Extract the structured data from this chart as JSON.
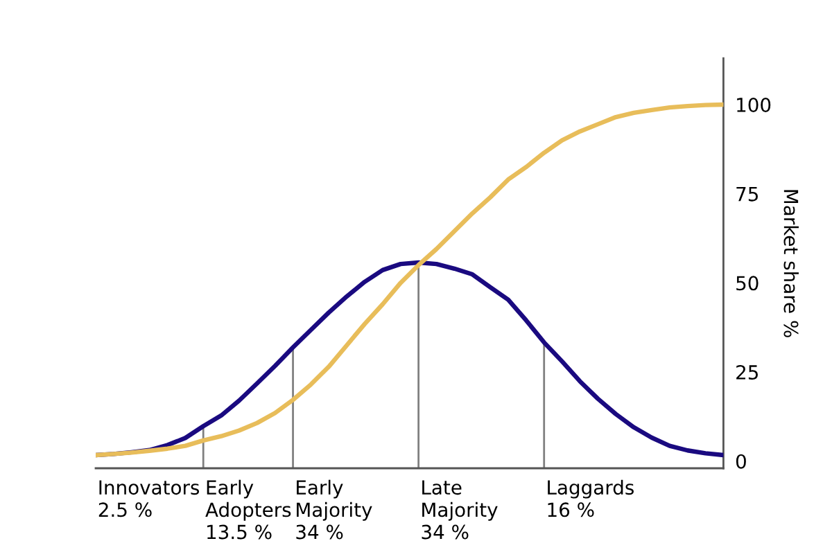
{
  "chart_data": {
    "type": "line",
    "ylabel": "Market share %",
    "categories": [
      null,
      null,
      null,
      null,
      null,
      null,
      null,
      null,
      null,
      null,
      null,
      null,
      null,
      null,
      null,
      null,
      null,
      null,
      null,
      null,
      null,
      null,
      null,
      null,
      null,
      null,
      null,
      null,
      null,
      null,
      null,
      null,
      null,
      null,
      null,
      null
    ],
    "ylim": [
      -2,
      113
    ],
    "yticks": [
      0,
      25,
      50,
      75,
      100
    ],
    "tick_labels": "y",
    "grid": false,
    "marker": "none",
    "line_style": "solid",
    "series": [
      {
        "color": "#1a0a80",
        "values": [
          1.7,
          2.0,
          2.5,
          3.1,
          4.5,
          6.5,
          9.8,
          12.8,
          17.0,
          21.8,
          26.7,
          31.9,
          36.8,
          41.7,
          46.2,
          50.3,
          53.6,
          55.3,
          55.7,
          55.3,
          54.0,
          52.4,
          48.8,
          45.3,
          39.5,
          33.3,
          28.0,
          22.4,
          17.5,
          13.2,
          9.5,
          6.6,
          4.3,
          3.0,
          2.2,
          1.7
        ]
      },
      {
        "color": "#e8bd5a",
        "values": [
          1.7,
          2.0,
          2.4,
          2.9,
          3.5,
          4.3,
          5.8,
          7.0,
          8.6,
          10.7,
          13.5,
          17.2,
          21.5,
          26.5,
          32.5,
          38.5,
          44.0,
          50.0,
          55.0,
          59.5,
          64.5,
          69.5,
          74.0,
          79.0,
          82.5,
          86.5,
          90.0,
          92.5,
          94.5,
          96.5,
          97.7,
          98.5,
          99.2,
          99.6,
          99.9,
          100
        ]
      }
    ],
    "annotations": [
      "Innovators\n2.5 %",
      "Early\nAdopters\n13.5 %",
      "Early\nMajority\n34 %",
      "Late\nMajority\n34 %",
      "Laggards\n16 %"
    ]
  }
}
